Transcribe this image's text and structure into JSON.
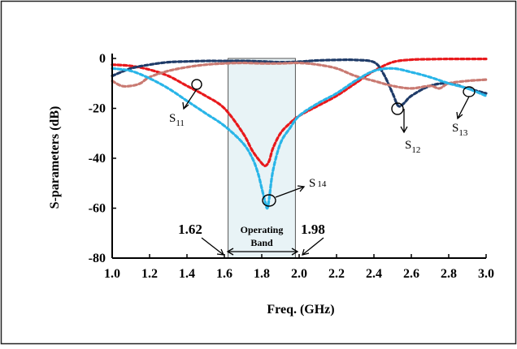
{
  "chart_data": {
    "type": "line",
    "xlabel": "Freq. (GHz)",
    "ylabel": "S-parameters (dB)",
    "xlim": [
      1.0,
      3.0
    ],
    "ylim": [
      -80,
      0
    ],
    "xticks": [
      "1.0",
      "1.2",
      "1.4",
      "1.6",
      "1.8",
      "2.0",
      "2.2",
      "2.4",
      "2.6",
      "2.8",
      "3.0"
    ],
    "yticks": [
      "0",
      "-20",
      "-40",
      "-60",
      "-80"
    ],
    "grid": false,
    "band": {
      "from": 1.62,
      "to": 1.98,
      "label_line1": "Operating",
      "label_line2": "Band",
      "from_label": "1.62",
      "to_label": "1.98"
    },
    "series": [
      {
        "label": "S",
        "sub": "11",
        "color": "#e8191c",
        "x": [
          1.0,
          1.1,
          1.2,
          1.3,
          1.4,
          1.5,
          1.6,
          1.7,
          1.75,
          1.8,
          1.82,
          1.84,
          1.86,
          1.9,
          1.95,
          2.0,
          2.1,
          2.2,
          2.3,
          2.4,
          2.5,
          2.6,
          2.7,
          2.8,
          2.9,
          3.0
        ],
        "y": [
          -2.5,
          -3,
          -4.5,
          -7,
          -11,
          -15,
          -20,
          -30,
          -37,
          -42,
          -43,
          -41,
          -36,
          -30,
          -26,
          -23,
          -19,
          -15,
          -10,
          -5,
          -1.5,
          -0.5,
          -0.3,
          -0.2,
          -0.2,
          -0.2
        ]
      },
      {
        "label": "S",
        "sub": "12",
        "color": "#1f3b68",
        "x": [
          1.0,
          1.1,
          1.2,
          1.3,
          1.4,
          1.5,
          1.6,
          1.7,
          1.8,
          1.9,
          2.0,
          2.1,
          2.2,
          2.3,
          2.4,
          2.45,
          2.5,
          2.53,
          2.56,
          2.6,
          2.7,
          2.8,
          2.9,
          3.0
        ],
        "y": [
          -7,
          -4,
          -2.5,
          -1.5,
          -1.2,
          -1.0,
          -1.0,
          -1.0,
          -1.2,
          -1.5,
          -1.3,
          -0.8,
          -0.6,
          -0.6,
          -1.5,
          -6,
          -14,
          -19,
          -18,
          -15,
          -11,
          -10,
          -12,
          -14
        ]
      },
      {
        "label": "S",
        "sub": "13",
        "color": "#c97a72",
        "x": [
          1.0,
          1.05,
          1.1,
          1.15,
          1.2,
          1.3,
          1.4,
          1.5,
          1.6,
          1.7,
          1.8,
          1.9,
          2.0,
          2.1,
          2.2,
          2.3,
          2.4,
          2.5,
          2.6,
          2.7,
          2.75,
          2.8,
          2.9,
          3.0
        ],
        "y": [
          -9,
          -11,
          -11,
          -10,
          -7.5,
          -5,
          -3.5,
          -2.5,
          -2,
          -1.8,
          -2,
          -2,
          -1.8,
          -2.5,
          -4,
          -7,
          -9,
          -11,
          -12,
          -11,
          -12,
          -10,
          -9,
          -8.5
        ]
      },
      {
        "label": "S",
        "sub": "14",
        "color": "#29b5e8",
        "x": [
          1.0,
          1.1,
          1.2,
          1.3,
          1.4,
          1.5,
          1.6,
          1.7,
          1.75,
          1.78,
          1.8,
          1.82,
          1.83,
          1.84,
          1.86,
          1.9,
          1.95,
          2.0,
          2.1,
          2.2,
          2.3,
          2.4,
          2.5,
          2.6,
          2.7,
          2.8,
          2.9,
          3.0
        ],
        "y": [
          -4,
          -5,
          -8,
          -12,
          -17,
          -22,
          -27,
          -34,
          -40,
          -46,
          -52,
          -58,
          -60,
          -56,
          -45,
          -34,
          -28,
          -23,
          -18,
          -14,
          -9,
          -5,
          -4,
          -5.5,
          -7.5,
          -10,
          -12,
          -15
        ]
      }
    ],
    "annotations": [
      {
        "label": "S",
        "sub": "11"
      },
      {
        "label": "S",
        "sub": "12"
      },
      {
        "label": "S",
        "sub": "13"
      },
      {
        "label": "S",
        "sub": "14"
      }
    ]
  }
}
